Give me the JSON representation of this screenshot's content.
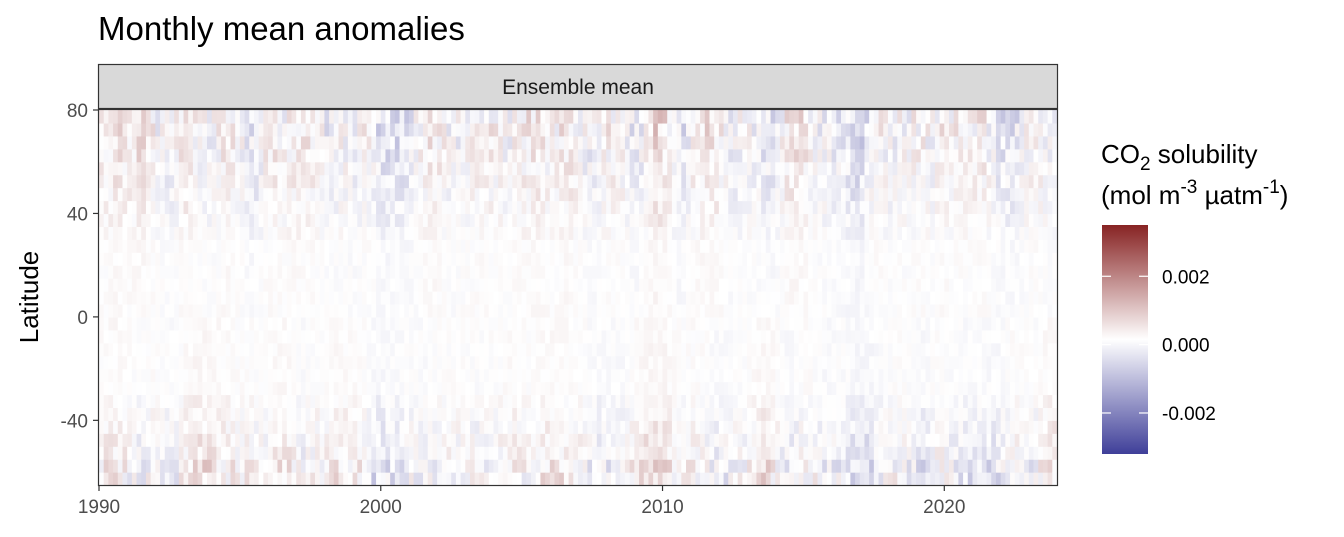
{
  "chart_data": {
    "type": "heatmap",
    "title": "Monthly mean anomalies",
    "facet_label": "Ensemble mean",
    "xlabel": "",
    "ylabel": "Latitude",
    "xlim": [
      1990,
      2024
    ],
    "ylim": [
      -65,
      80
    ],
    "x_ticks": [
      1990,
      2000,
      2010,
      2020
    ],
    "y_ticks": [
      80,
      40,
      0,
      -40
    ],
    "legend": {
      "title_line1_main": "CO",
      "title_line1_sub": "2",
      "title_line1_rest": " solubility",
      "title_line2_a": "(mol m",
      "title_line2_sup1": "-3",
      "title_line2_b": " µatm",
      "title_line2_sup2": "-1",
      "title_line2_c": ")",
      "range": [
        -0.0032,
        0.0035
      ],
      "ticks": [
        0.002,
        0.0,
        -0.002
      ],
      "tick_labels": [
        "0.002",
        "0.000",
        "-0.002"
      ],
      "position": "right"
    },
    "colors": {
      "low": "#3f3f99",
      "mid": "#ffffff",
      "high": "#872323"
    },
    "grid": false
  }
}
